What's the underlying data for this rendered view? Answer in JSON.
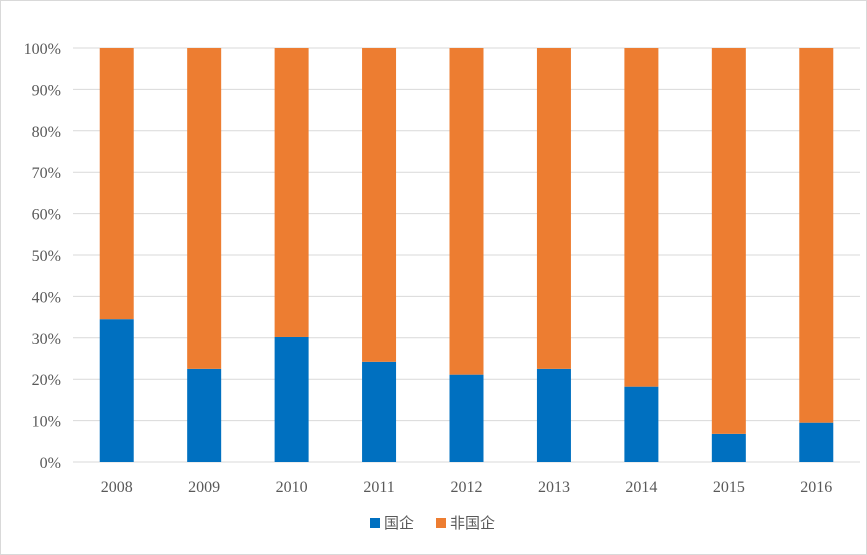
{
  "chart_data": {
    "type": "bar",
    "stacked": "percent",
    "categories": [
      "2008",
      "2009",
      "2010",
      "2011",
      "2012",
      "2013",
      "2014",
      "2015",
      "2016"
    ],
    "series": [
      {
        "name": "国企",
        "color": "#0070c0",
        "values": [
          34.5,
          22.5,
          30.2,
          24.2,
          21.1,
          22.5,
          18.2,
          6.8,
          9.5
        ]
      },
      {
        "name": "非国企",
        "color": "#ed7d31",
        "values": [
          65.5,
          77.5,
          69.8,
          75.8,
          78.9,
          77.5,
          81.8,
          93.2,
          90.5
        ]
      }
    ],
    "yticks": [
      "0%",
      "10%",
      "20%",
      "30%",
      "40%",
      "50%",
      "60%",
      "70%",
      "80%",
      "90%",
      "100%"
    ],
    "ylim": [
      0,
      100
    ],
    "grid": true,
    "legend": "bottom-center",
    "title": "",
    "xlabel": "",
    "ylabel": ""
  }
}
